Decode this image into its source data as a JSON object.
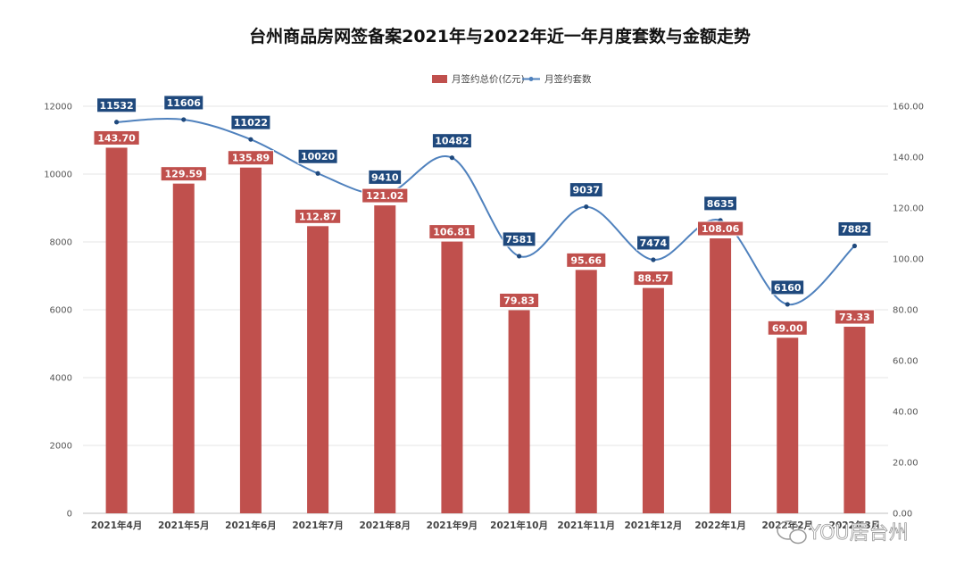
{
  "chart_data": {
    "type": "bar+line",
    "title": "台州商品房网签备案2021年与2022年近一年月度套数与金额走势",
    "categories": [
      "2021年4月",
      "2021年5月",
      "2021年6月",
      "2021年7月",
      "2021年8月",
      "2021年9月",
      "2021年10月",
      "2021年11月",
      "2021年12月",
      "2022年1月",
      "2022年2月",
      "2022年3月"
    ],
    "series": [
      {
        "name": "月签约总价(亿元)",
        "type": "bar",
        "axis": "right",
        "color": "#c0504d",
        "values": [
          143.7,
          129.59,
          135.89,
          112.87,
          121.02,
          106.81,
          79.83,
          95.66,
          88.57,
          108.06,
          69.0,
          73.33
        ],
        "labels": [
          "143.70",
          "129.59",
          "135.89",
          "112.87",
          "121.02",
          "106.81",
          "79.83",
          "95.66",
          "88.57",
          "108.06",
          "69.00",
          "73.33"
        ]
      },
      {
        "name": "月签约套数",
        "type": "line",
        "axis": "left",
        "color": "#4f81bd",
        "label_color": "#1f497d",
        "values": [
          11532,
          11606,
          11022,
          10020,
          9410,
          10482,
          7581,
          9037,
          7474,
          8635,
          6160,
          7882
        ],
        "labels": [
          "11532",
          "11606",
          "11022",
          "10020",
          "9410",
          "10482",
          "7581",
          "9037",
          "7474",
          "8635",
          "6160",
          "7882"
        ]
      }
    ],
    "y_left": {
      "min": 0,
      "max": 12000,
      "ticks": [
        "0",
        "2000",
        "4000",
        "6000",
        "8000",
        "10000",
        "12000"
      ]
    },
    "y_right": {
      "min": 0,
      "max": 160,
      "ticks": [
        "0.00",
        "20.00",
        "40.00",
        "60.00",
        "80.00",
        "100.00",
        "120.00",
        "140.00",
        "160.00"
      ]
    },
    "grid": true,
    "legend_position": "top-center"
  },
  "watermark": {
    "text": "YOU居台州",
    "icon": "wechat-icon"
  }
}
